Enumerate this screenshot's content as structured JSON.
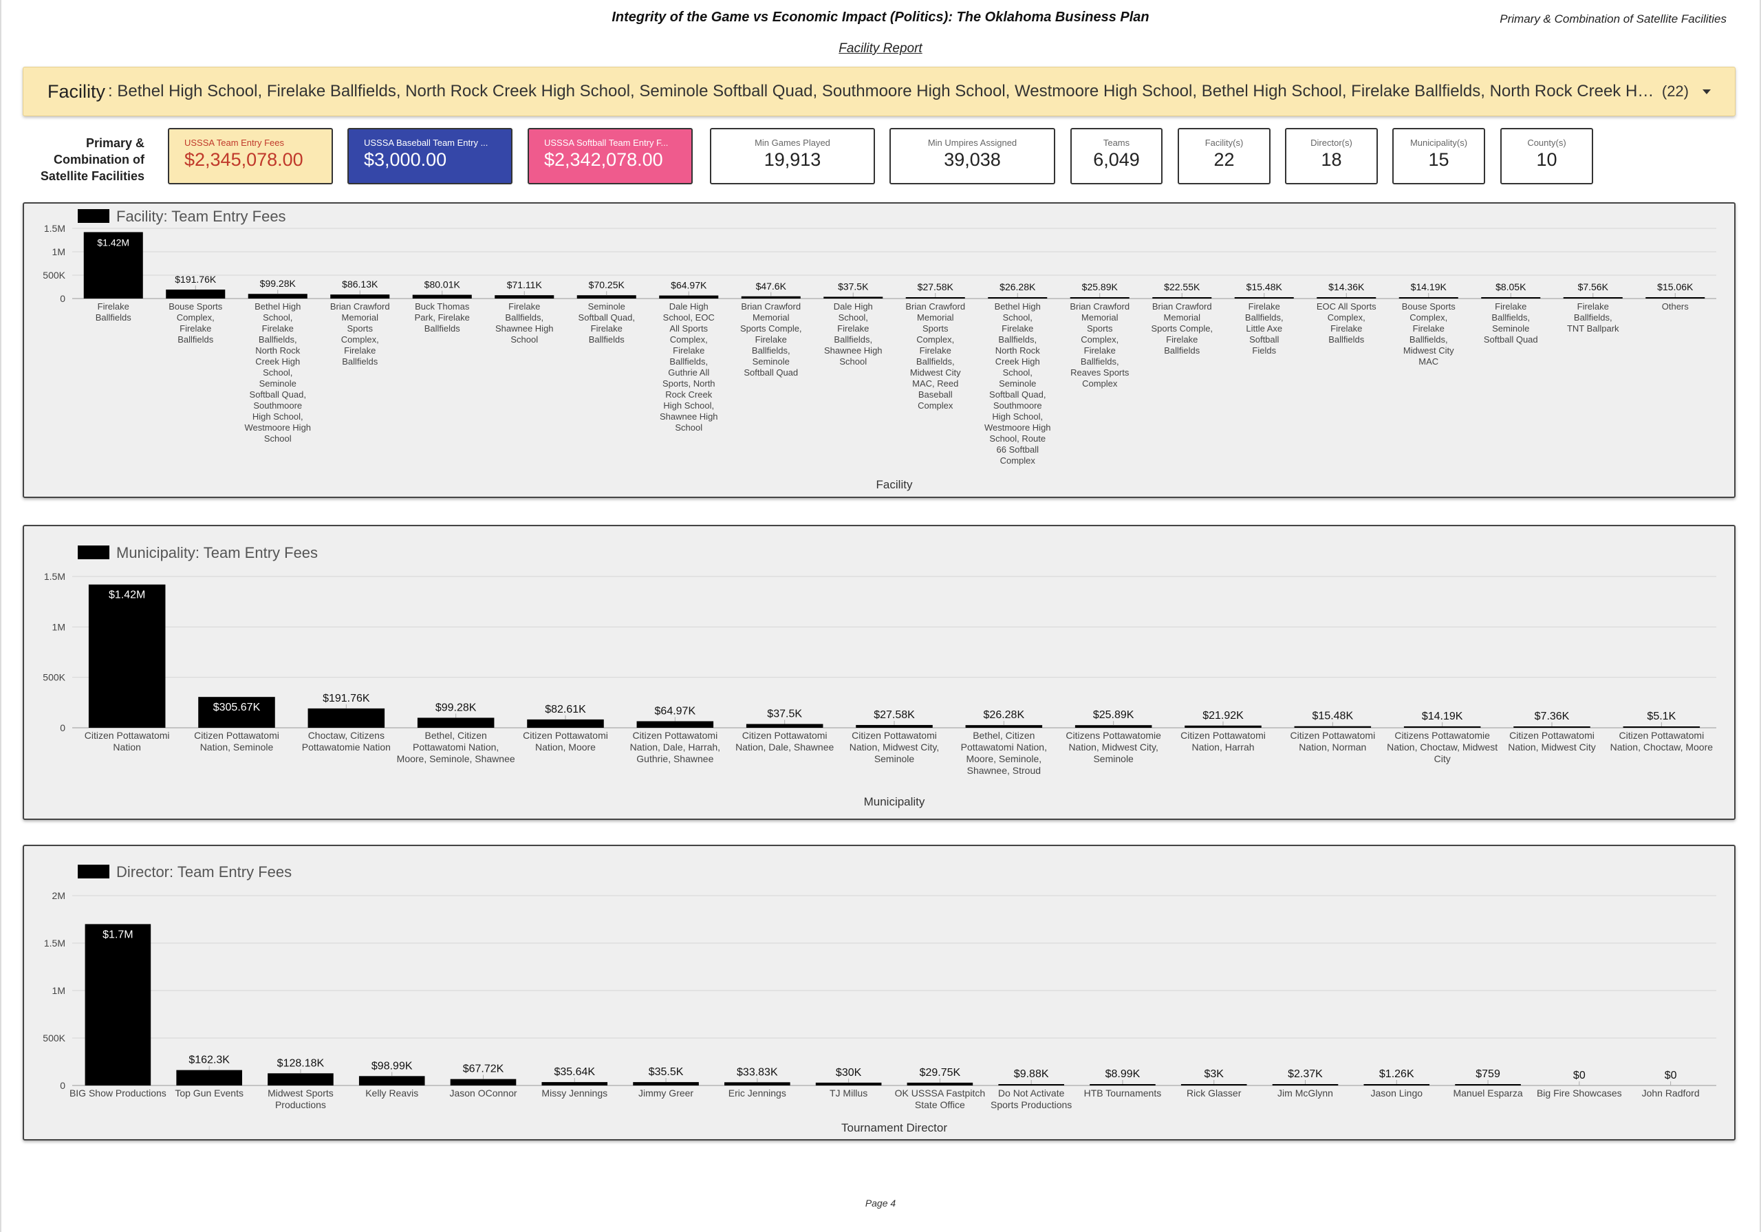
{
  "header": {
    "title": "Integrity of the Game vs Economic Impact (Politics): The Oklahoma Business Plan",
    "top_right": "Primary & Combination of Satellite Facilities",
    "subtitle": "Facility Report"
  },
  "filter": {
    "label": "Facility",
    "value": ": Bethel High School, Firelake Ballfields, North Rock Creek High School, Seminole Softball Quad, Southmoore High School, Westmoore High School, Bethel High School, Firelake Ballfields, North Rock Creek High School, Seminole Softball Quad, Southmoore High School, Westmoore High School",
    "count": "(22)"
  },
  "kpi_side_label": "Primary & Combination of Satellite Facilities",
  "kpis": [
    {
      "name": "USSSA Team Entry Fees",
      "value": "$2,345,078.00",
      "bg": "#fbe9b3",
      "name_color": "#c0392b",
      "value_color": "#c0392b"
    },
    {
      "name": "USSSA Baseball Team Entry ...",
      "value": "$3,000.00",
      "bg": "#3547a8",
      "name_color": "#ffffff",
      "value_color": "#ffffff"
    },
    {
      "name": "USSSA Softball Team Entry F...",
      "value": "$2,342,078.00",
      "bg": "#ef5b8d",
      "name_color": "#ffffff",
      "value_color": "#ffffff"
    },
    {
      "name": "Min Games Played",
      "value": "19,913",
      "bg": "#ffffff",
      "name_color": "#666666",
      "value_color": "#222222"
    },
    {
      "name": "Min Umpires Assigned",
      "value": "39,038",
      "bg": "#ffffff",
      "name_color": "#666666",
      "value_color": "#222222"
    },
    {
      "name": "Teams",
      "value": "6,049",
      "bg": "#ffffff",
      "name_color": "#666666",
      "value_color": "#222222"
    },
    {
      "name": "Facility(s)",
      "value": "22",
      "bg": "#ffffff",
      "name_color": "#666666",
      "value_color": "#222222"
    },
    {
      "name": "Director(s)",
      "value": "18",
      "bg": "#ffffff",
      "name_color": "#666666",
      "value_color": "#222222"
    },
    {
      "name": "Municipality(s)",
      "value": "15",
      "bg": "#ffffff",
      "name_color": "#666666",
      "value_color": "#222222"
    },
    {
      "name": "County(s)",
      "value": "10",
      "bg": "#ffffff",
      "name_color": "#666666",
      "value_color": "#222222"
    }
  ],
  "chart_data": [
    {
      "type": "bar",
      "title": "Facility: Team Entry Fees",
      "legend": "Team Entry Fees",
      "xlabel": "Facility",
      "ylabel": "",
      "ylim": [
        0,
        1500000
      ],
      "yticks": [
        0,
        500000,
        1000000,
        1500000
      ],
      "ytick_labels": [
        "0",
        "500K",
        "1M",
        "1.5M"
      ],
      "grid": true,
      "bar_color": "#000000",
      "categories": [
        "Firelake Ballfields",
        "Bouse Sports Complex, Firelake Ballfields",
        "Bethel High School, Firelake Ballfields, North Rock Creek High School, Seminole Softball Quad, Southmoore High School, Westmoore High School",
        "Brian Crawford Memorial Sports Complex, Firelake Ballfields",
        "Buck Thomas Park, Firelake Ballfields",
        "Firelake Ballfields, Shawnee High School",
        "Seminole Softball Quad, Firelake Ballfields",
        "Dale High School, EOC All Sports Complex, Firelake Ballfields, Guthrie All Sports, North Rock Creek High School, Shawnee High School",
        "Brian Crawford Memorial Sports Comple, Firelake Ballfields, Seminole Softball Quad",
        "Dale High School, Firelake Ballfields, Shawnee High School",
        "Brian Crawford Memorial Sports Complex, Firelake Ballfields, Midwest City MAC, Reed Baseball Complex",
        "Bethel High School, Firelake Ballfields, North Rock Creek High School, Seminole Softball Quad, Southmoore High School, Westmoore High School, Route 66 Softball Complex",
        "Brian Crawford Memorial Sports Complex, Firelake Ballfields, Reaves Sports Complex",
        "Brian Crawford Memorial Sports Comple, Firelake Ballfields",
        "Firelake Ballfields, Little Axe Softball Fields",
        "EOC All Sports Complex, Firelake Ballfields",
        "Bouse Sports Complex, Firelake Ballfields, Midwest City MAC",
        "Firelake Ballfields, Seminole Softball Quad",
        "Firelake Ballfields, TNT Ballpark",
        "Others"
      ],
      "values": [
        1420000,
        191760,
        99280,
        86130,
        80010,
        71110,
        70250,
        64970,
        47600,
        37500,
        27580,
        26280,
        25890,
        22550,
        15480,
        14360,
        14190,
        8050,
        7560,
        15060
      ],
      "data_labels": [
        "$1.42M",
        "$191.76K",
        "$99.28K",
        "$86.13K",
        "$80.01K",
        "$71.11K",
        "$70.25K",
        "$64.97K",
        "$47.6K",
        "$37.5K",
        "$27.58K",
        "$26.28K",
        "$25.89K",
        "$22.55K",
        "$15.48K",
        "$14.36K",
        "$14.19K",
        "$8.05K",
        "$7.56K",
        "$15.06K"
      ]
    },
    {
      "type": "bar",
      "title": "Municipality: Team Entry Fees",
      "legend": "Team Entry Fees",
      "xlabel": "Municipality",
      "ylabel": "",
      "ylim": [
        0,
        1500000
      ],
      "yticks": [
        0,
        500000,
        1000000,
        1500000
      ],
      "ytick_labels": [
        "0",
        "500K",
        "1M",
        "1.5M"
      ],
      "grid": true,
      "bar_color": "#000000",
      "categories": [
        "Citizen Pottawatomi Nation",
        "Citizen Pottawatomi Nation, Seminole",
        "Choctaw, Citizens Pottawatomie Nation",
        "Bethel, Citizen Pottawatomi Nation, Moore, Seminole, Shawnee",
        "Citizen Pottawatomi Nation, Moore",
        "Citizen Pottawatomi Nation, Dale, Harrah, Guthrie, Shawnee",
        "Citizen Pottawatomi Nation, Dale, Shawnee",
        "Citizen Pottawatomi Nation, Midwest City, Seminole",
        "Bethel, Citizen Pottawatomi Nation, Moore, Seminole, Shawnee, Stroud",
        "Citizens Pottawatomie Nation, Midwest City, Seminole",
        "Citizen Pottawatomi Nation, Harrah",
        "Citizen Pottawatomi Nation, Norman",
        "Citizens Pottawatomie Nation, Choctaw, Midwest City",
        "Citizen Pottawatomi Nation, Midwest City",
        "Citizen Pottawatomi Nation, Choctaw, Moore"
      ],
      "values": [
        1420000,
        305670,
        191760,
        99280,
        82610,
        64970,
        37500,
        27580,
        26280,
        25890,
        21920,
        15480,
        14190,
        7360,
        5100
      ],
      "data_labels": [
        "$1.42M",
        "$305.67K",
        "$191.76K",
        "$99.28K",
        "$82.61K",
        "$64.97K",
        "$37.5K",
        "$27.58K",
        "$26.28K",
        "$25.89K",
        "$21.92K",
        "$15.48K",
        "$14.19K",
        "$7.36K",
        "$5.1K"
      ]
    },
    {
      "type": "bar",
      "title": "Director: Team Entry Fees",
      "legend": "Team Entry Fees",
      "xlabel": "Tournament Director",
      "ylabel": "",
      "ylim": [
        0,
        2000000
      ],
      "yticks": [
        0,
        500000,
        1000000,
        1500000,
        2000000
      ],
      "ytick_labels": [
        "0",
        "500K",
        "1M",
        "1.5M",
        "2M"
      ],
      "grid": true,
      "bar_color": "#000000",
      "categories": [
        "BIG Show Productions",
        "Top Gun Events",
        "Midwest Sports Productions",
        "Kelly Reavis",
        "Jason OConnor",
        "Missy Jennings",
        "Jimmy Greer",
        "Eric Jennings",
        "TJ Millus",
        "OK USSSA Fastpitch State Office",
        "Do Not Activate Sports Productions",
        "HTB Tournaments",
        "Rick Glasser",
        "Jim McGlynn",
        "Jason Lingo",
        "Manuel Esparza",
        "Big Fire Showcases",
        "John Radford"
      ],
      "values": [
        1700000,
        162300,
        128180,
        98990,
        67720,
        35640,
        35500,
        33830,
        30000,
        29750,
        9880,
        8990,
        3000,
        2370,
        1260,
        759,
        0,
        0
      ],
      "data_labels": [
        "$1.7M",
        "$162.3K",
        "$128.18K",
        "$98.99K",
        "$67.72K",
        "$35.64K",
        "$35.5K",
        "$33.83K",
        "$30K",
        "$29.75K",
        "$9.88K",
        "$8.99K",
        "$3K",
        "$2.37K",
        "$1.26K",
        "$759",
        "$0",
        "$0"
      ]
    }
  ],
  "footer": {
    "page": "Page 4"
  }
}
